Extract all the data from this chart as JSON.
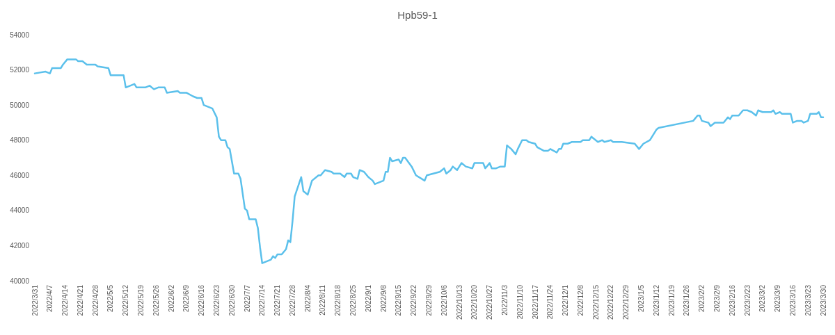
{
  "chart_data": {
    "type": "line",
    "title": "Hpb59-1",
    "x": [
      "2022-03-31",
      "2022-04-05",
      "2022-04-07",
      "2022-04-08",
      "2022-04-12",
      "2022-04-13",
      "2022-04-15",
      "2022-04-19",
      "2022-04-20",
      "2022-04-22",
      "2022-04-24",
      "2022-04-28",
      "2022-04-29",
      "2022-05-04",
      "2022-05-05",
      "2022-05-11",
      "2022-05-12",
      "2022-05-14",
      "2022-05-16",
      "2022-05-17",
      "2022-05-21",
      "2022-05-23",
      "2022-05-25",
      "2022-05-27",
      "2022-05-30",
      "2022-05-31",
      "2022-06-05",
      "2022-06-06",
      "2022-06-09",
      "2022-06-12",
      "2022-06-14",
      "2022-06-16",
      "2022-06-17",
      "2022-06-19",
      "2022-06-21",
      "2022-06-23",
      "2022-06-24",
      "2022-06-25",
      "2022-06-27",
      "2022-06-28",
      "2022-06-29",
      "2022-06-30",
      "2022-07-01",
      "2022-07-03",
      "2022-07-04",
      "2022-07-06",
      "2022-07-07",
      "2022-07-08",
      "2022-07-11",
      "2022-07-12",
      "2022-07-13",
      "2022-07-14",
      "2022-07-16",
      "2022-07-18",
      "2022-07-19",
      "2022-07-20",
      "2022-07-21",
      "2022-07-23",
      "2022-07-25",
      "2022-07-26",
      "2022-07-27",
      "2022-07-28",
      "2022-07-29",
      "2022-08-01",
      "2022-08-02",
      "2022-08-03",
      "2022-08-04",
      "2022-08-06",
      "2022-08-09",
      "2022-08-10",
      "2022-08-12",
      "2022-08-15",
      "2022-08-16",
      "2022-08-19",
      "2022-08-21",
      "2022-08-22",
      "2022-08-24",
      "2022-08-25",
      "2022-08-27",
      "2022-08-28",
      "2022-08-30",
      "2022-09-01",
      "2022-09-03",
      "2022-09-04",
      "2022-09-06",
      "2022-09-08",
      "2022-09-09",
      "2022-09-10",
      "2022-09-11",
      "2022-09-12",
      "2022-09-15",
      "2022-09-16",
      "2022-09-17",
      "2022-09-18",
      "2022-09-21",
      "2022-09-23",
      "2022-09-27",
      "2022-09-28",
      "2022-10-01",
      "2022-10-04",
      "2022-10-06",
      "2022-10-07",
      "2022-10-09",
      "2022-10-10",
      "2022-10-12",
      "2022-10-14",
      "2022-10-16",
      "2022-10-19",
      "2022-10-20",
      "2022-10-24",
      "2022-10-25",
      "2022-10-27",
      "2022-10-28",
      "2022-10-30",
      "2022-11-01",
      "2022-11-03",
      "2022-11-04",
      "2022-11-06",
      "2022-11-08",
      "2022-11-09",
      "2022-11-11",
      "2022-11-13",
      "2022-11-14",
      "2022-11-17",
      "2022-11-18",
      "2022-11-21",
      "2022-11-23",
      "2022-11-24",
      "2022-11-27",
      "2022-11-28",
      "2022-11-29",
      "2022-11-30",
      "2022-12-02",
      "2022-12-04",
      "2022-12-06",
      "2022-12-08",
      "2022-12-09",
      "2022-12-12",
      "2022-12-13",
      "2022-12-16",
      "2022-12-18",
      "2022-12-19",
      "2022-12-22",
      "2022-12-23",
      "2022-12-26",
      "2022-12-27",
      "2023-01-02",
      "2023-01-04",
      "2023-01-06",
      "2023-01-09",
      "2023-01-12",
      "2023-01-13",
      "2023-01-29",
      "2023-01-31",
      "2023-02-01",
      "2023-02-02",
      "2023-02-05",
      "2023-02-06",
      "2023-02-08",
      "2023-02-12",
      "2023-02-14",
      "2023-02-15",
      "2023-02-16",
      "2023-02-19",
      "2023-02-21",
      "2023-02-23",
      "2023-02-25",
      "2023-02-27",
      "2023-02-28",
      "2023-03-02",
      "2023-03-06",
      "2023-03-07",
      "2023-03-08",
      "2023-03-10",
      "2023-03-11",
      "2023-03-15",
      "2023-03-16",
      "2023-03-18",
      "2023-03-20",
      "2023-03-21",
      "2023-03-23",
      "2023-03-24",
      "2023-03-27",
      "2023-03-28",
      "2023-03-29",
      "2023-03-30"
    ],
    "series": [
      {
        "color": "#5bc0eb",
        "values": [
          51800,
          51900,
          51800,
          52100,
          52100,
          52300,
          52600,
          52600,
          52500,
          52500,
          52300,
          52300,
          52200,
          52100,
          51700,
          51700,
          51000,
          51100,
          51200,
          51000,
          51000,
          51100,
          50900,
          51000,
          51000,
          50700,
          50800,
          50700,
          50700,
          50500,
          50400,
          50400,
          50000,
          49900,
          49800,
          49300,
          48200,
          48000,
          48000,
          47600,
          47500,
          46800,
          46100,
          46100,
          45800,
          44100,
          44000,
          43500,
          43500,
          43000,
          41900,
          41000,
          41100,
          41200,
          41400,
          41300,
          41500,
          41500,
          41800,
          42300,
          42200,
          43400,
          44800,
          45900,
          45100,
          45000,
          44900,
          45700,
          46000,
          46000,
          46300,
          46200,
          46100,
          46100,
          45900,
          46100,
          46100,
          45900,
          45800,
          46300,
          46200,
          45900,
          45700,
          45500,
          45600,
          45700,
          46200,
          46200,
          47000,
          46800,
          46900,
          46700,
          47000,
          47000,
          46500,
          46000,
          45700,
          46000,
          46100,
          46200,
          46400,
          46100,
          46300,
          46500,
          46300,
          46700,
          46500,
          46400,
          46700,
          46700,
          46400,
          46700,
          46400,
          46400,
          46500,
          46500,
          47700,
          47500,
          47200,
          47500,
          48000,
          48000,
          47900,
          47800,
          47600,
          47400,
          47400,
          47500,
          47300,
          47500,
          47500,
          47800,
          47800,
          47900,
          47900,
          47900,
          48000,
          48000,
          48200,
          47900,
          48000,
          47900,
          48000,
          47900,
          47900,
          47900,
          47800,
          47500,
          47800,
          48000,
          48600,
          48700,
          49100,
          49400,
          49400,
          49100,
          49000,
          48800,
          49000,
          49000,
          49300,
          49200,
          49400,
          49400,
          49700,
          49700,
          49600,
          49400,
          49700,
          49600,
          49600,
          49700,
          49500,
          49600,
          49500,
          49500,
          49000,
          49100,
          49100,
          49000,
          49100,
          49500,
          49500,
          49600,
          49300,
          49300
        ]
      }
    ],
    "xlim": [
      "2022-03-31",
      "2023-03-30"
    ],
    "xticks": [
      {
        "value": "2022-03-31",
        "label": "2022/3/31"
      },
      {
        "value": "2022-04-07",
        "label": "2022/4/7"
      },
      {
        "value": "2022-04-14",
        "label": "2022/4/14"
      },
      {
        "value": "2022-04-21",
        "label": "2022/4/21"
      },
      {
        "value": "2022-04-28",
        "label": "2022/4/28"
      },
      {
        "value": "2022-05-05",
        "label": "2022/5/5"
      },
      {
        "value": "2022-05-12",
        "label": "2022/5/12"
      },
      {
        "value": "2022-05-19",
        "label": "2022/5/19"
      },
      {
        "value": "2022-05-26",
        "label": "2022/5/26"
      },
      {
        "value": "2022-06-02",
        "label": "2022/6/2"
      },
      {
        "value": "2022-06-09",
        "label": "2022/6/9"
      },
      {
        "value": "2022-06-16",
        "label": "2022/6/16"
      },
      {
        "value": "2022-06-23",
        "label": "2022/6/23"
      },
      {
        "value": "2022-06-30",
        "label": "2022/6/30"
      },
      {
        "value": "2022-07-07",
        "label": "2022/7/7"
      },
      {
        "value": "2022-07-14",
        "label": "2022/7/14"
      },
      {
        "value": "2022-07-21",
        "label": "2022/7/21"
      },
      {
        "value": "2022-07-28",
        "label": "2022/7/28"
      },
      {
        "value": "2022-08-04",
        "label": "2022/8/4"
      },
      {
        "value": "2022-08-11",
        "label": "2022/8/11"
      },
      {
        "value": "2022-08-18",
        "label": "2022/8/18"
      },
      {
        "value": "2022-08-25",
        "label": "2022/8/25"
      },
      {
        "value": "2022-09-01",
        "label": "2022/9/1"
      },
      {
        "value": "2022-09-08",
        "label": "2022/9/8"
      },
      {
        "value": "2022-09-15",
        "label": "2022/9/15"
      },
      {
        "value": "2022-09-22",
        "label": "2022/9/22"
      },
      {
        "value": "2022-09-29",
        "label": "2022/9/29"
      },
      {
        "value": "2022-10-06",
        "label": "2022/10/6"
      },
      {
        "value": "2022-10-13",
        "label": "2022/10/13"
      },
      {
        "value": "2022-10-20",
        "label": "2022/10/20"
      },
      {
        "value": "2022-10-27",
        "label": "2022/10/27"
      },
      {
        "value": "2022-11-03",
        "label": "2022/11/3"
      },
      {
        "value": "2022-11-10",
        "label": "2022/11/10"
      },
      {
        "value": "2022-11-17",
        "label": "2022/11/17"
      },
      {
        "value": "2022-11-24",
        "label": "2022/11/24"
      },
      {
        "value": "2022-12-01",
        "label": "2022/12/1"
      },
      {
        "value": "2022-12-08",
        "label": "2022/12/8"
      },
      {
        "value": "2022-12-15",
        "label": "2022/12/15"
      },
      {
        "value": "2022-12-22",
        "label": "2022/12/22"
      },
      {
        "value": "2022-12-29",
        "label": "2022/12/29"
      },
      {
        "value": "2023-01-05",
        "label": "2023/1/5"
      },
      {
        "value": "2023-01-12",
        "label": "2023/1/12"
      },
      {
        "value": "2023-01-19",
        "label": "2023/1/19"
      },
      {
        "value": "2023-01-26",
        "label": "2023/1/26"
      },
      {
        "value": "2023-02-02",
        "label": "2023/2/2"
      },
      {
        "value": "2023-02-09",
        "label": "2023/2/9"
      },
      {
        "value": "2023-02-16",
        "label": "2023/2/16"
      },
      {
        "value": "2023-02-23",
        "label": "2023/2/23"
      },
      {
        "value": "2023-03-02",
        "label": "2023/3/2"
      },
      {
        "value": "2023-03-09",
        "label": "2023/3/9"
      },
      {
        "value": "2023-03-16",
        "label": "2023/3/16"
      },
      {
        "value": "2023-03-23",
        "label": "2023/3/23"
      },
      {
        "value": "2023-03-30",
        "label": "2023/3/30"
      }
    ],
    "ylim": [
      40000,
      54000
    ],
    "yticks": [
      40000,
      42000,
      44000,
      46000,
      48000,
      50000,
      52000,
      54000
    ],
    "grid": false,
    "marker": "none",
    "line_style": "solid"
  }
}
